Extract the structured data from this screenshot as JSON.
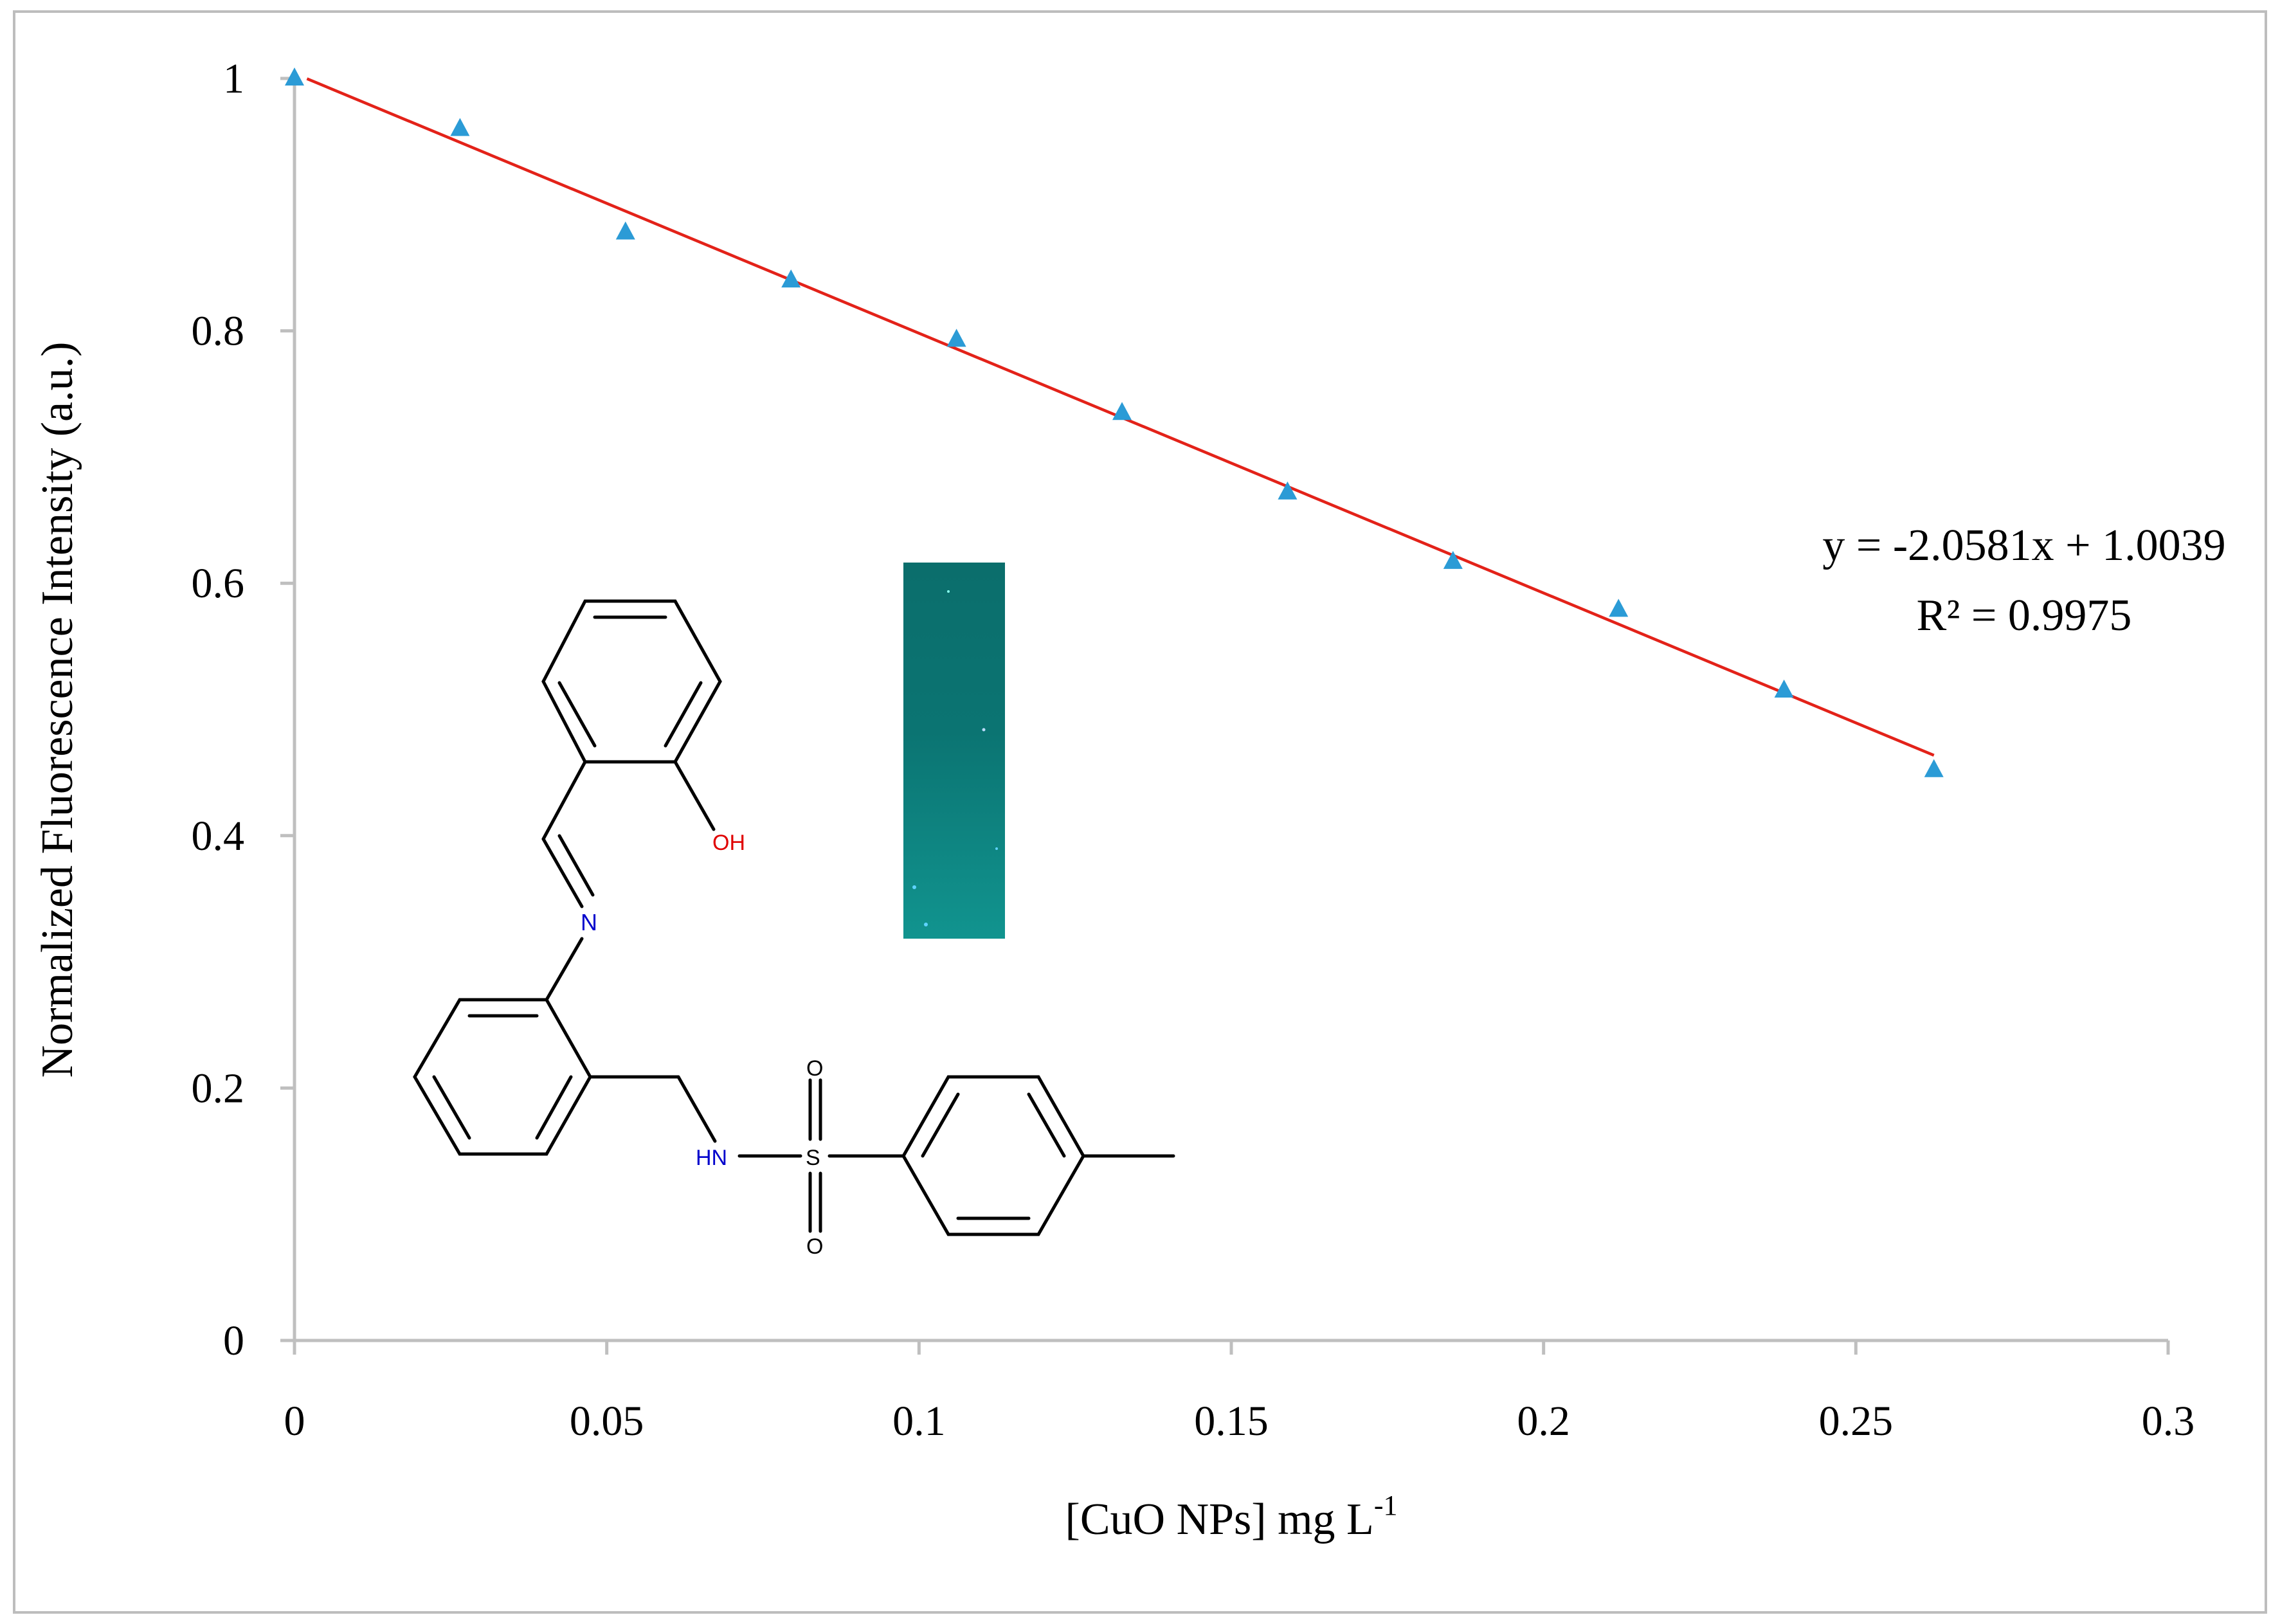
{
  "chart_data": {
    "type": "scatter",
    "title": "",
    "xlabel": "[CuO NPs] mg L",
    "xlabel_sup": "-1",
    "ylabel": "Normalized  Fluorescence Intensity  (a.u.)",
    "xlim": [
      0,
      0.3
    ],
    "ylim": [
      0,
      1
    ],
    "x_ticks": [
      "0",
      "0.05",
      "0.1",
      "0.15",
      "0.2",
      "0.25",
      "0.3"
    ],
    "y_ticks": [
      "0",
      "0.2",
      "0.4",
      "0.6",
      "0.8",
      "1"
    ],
    "series": [
      {
        "x": [
          0,
          0.0265,
          0.053,
          0.0795,
          0.106,
          0.1325,
          0.159,
          0.1855,
          0.212,
          0.2385,
          0.2625
        ],
        "y": [
          1.0,
          0.96,
          0.878,
          0.84,
          0.793,
          0.735,
          0.672,
          0.617,
          0.579,
          0.515,
          0.452
        ],
        "marker": "triangle",
        "color": "#2B9BD6"
      }
    ],
    "trendline": {
      "slope": -2.0581,
      "intercept": 1.0039,
      "x_range": [
        0.002,
        0.2625
      ],
      "color": "#E32219",
      "equation": "y = -2.0581x + 1.0039",
      "r2_label": "R² = 0.9975"
    },
    "grid": false,
    "legend": "none"
  },
  "inset": {
    "molecule_atoms": {
      "oh": "OH",
      "n_imine": "N",
      "hn": "HN",
      "s": "S",
      "o_top": "O",
      "o_bottom": "O"
    },
    "photo_color": "#0C7A78"
  }
}
